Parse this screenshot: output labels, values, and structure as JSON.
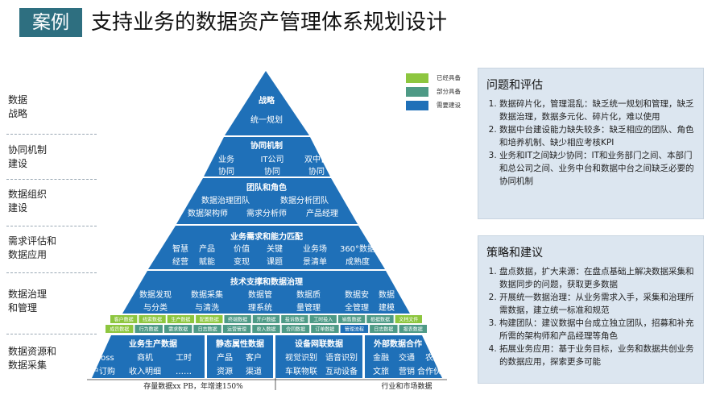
{
  "title": {
    "tag": "案例",
    "text": "支持业务的数据资产管理体系规划设计"
  },
  "left_labels": [
    [
      "数据",
      "战略"
    ],
    [
      "协同机制",
      "建设"
    ],
    [
      "数据组织",
      "建设"
    ],
    [
      "需求评估和",
      "数据应用"
    ],
    [
      "数据治理",
      "和管理"
    ],
    [
      "数据资源和",
      "数据采集"
    ]
  ],
  "legend": [
    {
      "label": "已经具备",
      "color": "#8dc63f"
    },
    {
      "label": "部分具备",
      "color": "#4e9a86"
    },
    {
      "label": "需要建设",
      "color": "#1f70b8"
    }
  ],
  "colors": {
    "blue": "#1f70b8",
    "green": "#8dc63f",
    "teal": "#4e9a86",
    "tag": "#2e6f80",
    "panel": "#dce6f0"
  },
  "pyramid": {
    "strategy": {
      "title": "战略",
      "text": "统一规划"
    },
    "collab": {
      "title": "协同机制",
      "row1": [
        "业务",
        "IT公司",
        "双中台"
      ],
      "row2": [
        "协同",
        "协同",
        "协同"
      ]
    },
    "org": {
      "title": "团队和角色",
      "row1": [
        "数据治理团队",
        "数据分析团队"
      ],
      "row2": [
        "数据架构师",
        "需求分析师",
        "产品经理"
      ]
    },
    "demand": {
      "title": "业务需求和能力匹配",
      "row1": [
        "智慧",
        "产品",
        "价值",
        "关键",
        "业务场",
        "360°数据"
      ],
      "row2": [
        "经营",
        "赋能",
        "变现",
        "课题",
        "景清单",
        "成熟度"
      ]
    },
    "gov": {
      "title": "技术支撑和数据治理",
      "row1": [
        "数据发现",
        "数据采集",
        "数据管",
        "数据质",
        "数据安",
        "数据"
      ],
      "row2": [
        "与分类",
        "与清洗",
        "理系统",
        "量管理",
        "全管理",
        "建模"
      ]
    },
    "cells_row1": [
      "客户数据",
      "线索数据",
      "生产数据",
      "配置数据",
      "终端数据",
      "开户数据",
      "投诉数据",
      "工时投入",
      "销售数据",
      "根据数据",
      "文档文件"
    ],
    "cells_row2": [
      "成员数据",
      "行为数据",
      "需求数据",
      "日志数据",
      "运营管理",
      "收入数据",
      "合同数据",
      "订单数据",
      "管理流程",
      "日志数据",
      "报表数据"
    ],
    "sources": [
      {
        "title": "业务生产数据",
        "row1": [
          "Boss",
          "商机",
          "工时"
        ],
        "row2": [
          "开户订购",
          "收入明细",
          "……"
        ]
      },
      {
        "title": "静态属性数据",
        "row1": [
          "产品",
          "客户"
        ],
        "row2": [
          "资源",
          "渠道"
        ]
      },
      {
        "title": "设备网联数据",
        "row1": [
          "视觉识别",
          "语音识别"
        ],
        "row2": [
          "车联物联",
          "互动设备"
        ]
      },
      {
        "title": "外部数据合作",
        "row1": [
          "金融",
          "交通",
          "农业"
        ],
        "row2": [
          "文旅",
          "营销",
          "合作伙伴"
        ]
      }
    ],
    "footer_left": "存量数据xx PB，年增速150%",
    "footer_right": "行业和市场数据"
  },
  "panel_problems": {
    "title": "问题和评估",
    "items": [
      "数据碎片化，管理混乱：缺乏统一规划和管理，缺乏数据治理，数据多元化、碎片化，难以使用",
      "数据中台建设能力缺失较多：缺乏相应的团队、角色和培养机制、缺少相应考核KPI",
      "业务和IT之间缺少协同：IT和业务部门之间、本部门和总公司之间、业务中台和数据中台之间缺乏必要的协同机制"
    ]
  },
  "panel_strategy": {
    "title": "策略和建议",
    "items": [
      "盘点数据，扩大来源：在盘点基础上解决数据采集和数据同步的问题，获取更多数据",
      "开展统一数据治理：从业务需求入手，采集和治理所需数据，建立统一标准和规范",
      "构建团队：建议数据中台成立独立团队，招募和补充所需的架构师和产品经理等角色",
      "拓展业务应用：基于业务目标，业务和数据共创业务的数据应用，探索更多可能"
    ]
  }
}
